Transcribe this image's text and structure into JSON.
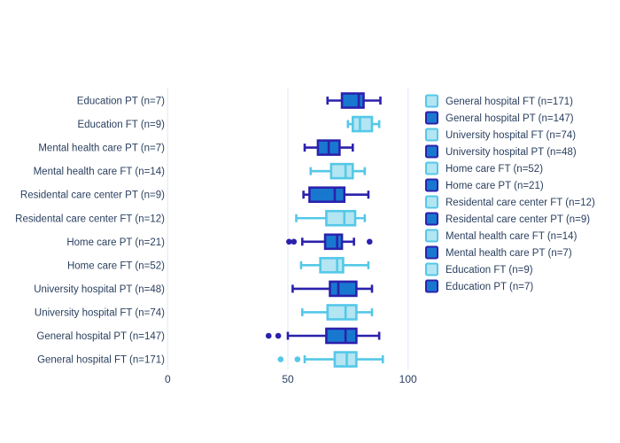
{
  "chart_data": {
    "type": "boxplot_horizontal",
    "title": "",
    "x_axis": {
      "ticks": [
        0,
        50,
        100
      ],
      "range": [
        0,
        104
      ],
      "grid": true
    },
    "series_colors": {
      "ft": {
        "fill": "#b3e5f2",
        "line": "#55c8e8"
      },
      "pt": {
        "fill": "#1878cf",
        "line": "#2b21ad"
      }
    },
    "rows": [
      {
        "label": "Education PT (n=7)",
        "type": "pt",
        "min": 66.5,
        "q1": 72.5,
        "median": 79.5,
        "q3": 81.5,
        "max": 88.5,
        "outliers": []
      },
      {
        "label": "Education FT (n=9)",
        "type": "ft",
        "min": 75,
        "q1": 77,
        "median": 80,
        "q3": 85,
        "max": 88,
        "outliers": []
      },
      {
        "label": "Mental health care PT (n=7)",
        "type": "pt",
        "min": 57,
        "q1": 62.5,
        "median": 67,
        "q3": 71.5,
        "max": 77,
        "outliers": []
      },
      {
        "label": "Mental health care FT (n=14)",
        "type": "ft",
        "min": 59.5,
        "q1": 68,
        "median": 74,
        "q3": 77,
        "max": 82,
        "outliers": []
      },
      {
        "label": "Residental care center PT (n=9)",
        "type": "pt",
        "min": 56.5,
        "q1": 59,
        "median": 69.5,
        "q3": 73.5,
        "max": 83.5,
        "outliers": []
      },
      {
        "label": "Residental care center FT (n=12)",
        "type": "ft",
        "min": 53.5,
        "q1": 66,
        "median": 73.5,
        "q3": 78,
        "max": 82,
        "outliers": []
      },
      {
        "label": "Home care PT (n=21)",
        "type": "pt",
        "min": 56,
        "q1": 65.5,
        "median": 70.5,
        "q3": 72.5,
        "max": 77.5,
        "outliers": [
          50.5,
          52.5,
          84
        ]
      },
      {
        "label": "Home care FT (n=52)",
        "type": "ft",
        "min": 55.5,
        "q1": 63.5,
        "median": 70.5,
        "q3": 73,
        "max": 83.5,
        "outliers": []
      },
      {
        "label": "University hospital PT (n=48)",
        "type": "pt",
        "min": 52,
        "q1": 67.5,
        "median": 71,
        "q3": 78.5,
        "max": 85,
        "outliers": []
      },
      {
        "label": "University hospital FT (n=74)",
        "type": "ft",
        "min": 56,
        "q1": 66.5,
        "median": 74,
        "q3": 78.5,
        "max": 85,
        "outliers": []
      },
      {
        "label": "General hospital PT (n=147)",
        "type": "pt",
        "min": 50,
        "q1": 66,
        "median": 74,
        "q3": 78.5,
        "max": 88,
        "outliers": [
          42,
          46
        ]
      },
      {
        "label": "General hospital FT (n=171)",
        "type": "ft",
        "min": 57,
        "q1": 69.5,
        "median": 74.5,
        "q3": 78.5,
        "max": 89.5,
        "outliers": [
          47,
          54
        ]
      }
    ],
    "legend": [
      {
        "label": "General hospital FT (n=171)",
        "type": "ft"
      },
      {
        "label": "General hospital PT (n=147)",
        "type": "pt"
      },
      {
        "label": "University hospital FT (n=74)",
        "type": "ft"
      },
      {
        "label": "University hospital PT (n=48)",
        "type": "pt"
      },
      {
        "label": "Home care FT (n=52)",
        "type": "ft"
      },
      {
        "label": "Home care PT (n=21)",
        "type": "pt"
      },
      {
        "label": "Residental care center FT (n=12)",
        "type": "ft"
      },
      {
        "label": "Residental care center PT (n=9)",
        "type": "pt"
      },
      {
        "label": "Mental health care FT (n=14)",
        "type": "ft"
      },
      {
        "label": "Mental health care PT (n=7)",
        "type": "pt"
      },
      {
        "label": "Education FT (n=9)",
        "type": "ft"
      },
      {
        "label": "Education PT (n=7)",
        "type": "pt"
      }
    ],
    "legend_position": "right"
  },
  "colors": {
    "text": "#2a3f5f",
    "grid": "#e9eef6",
    "background": "#ffffff"
  }
}
